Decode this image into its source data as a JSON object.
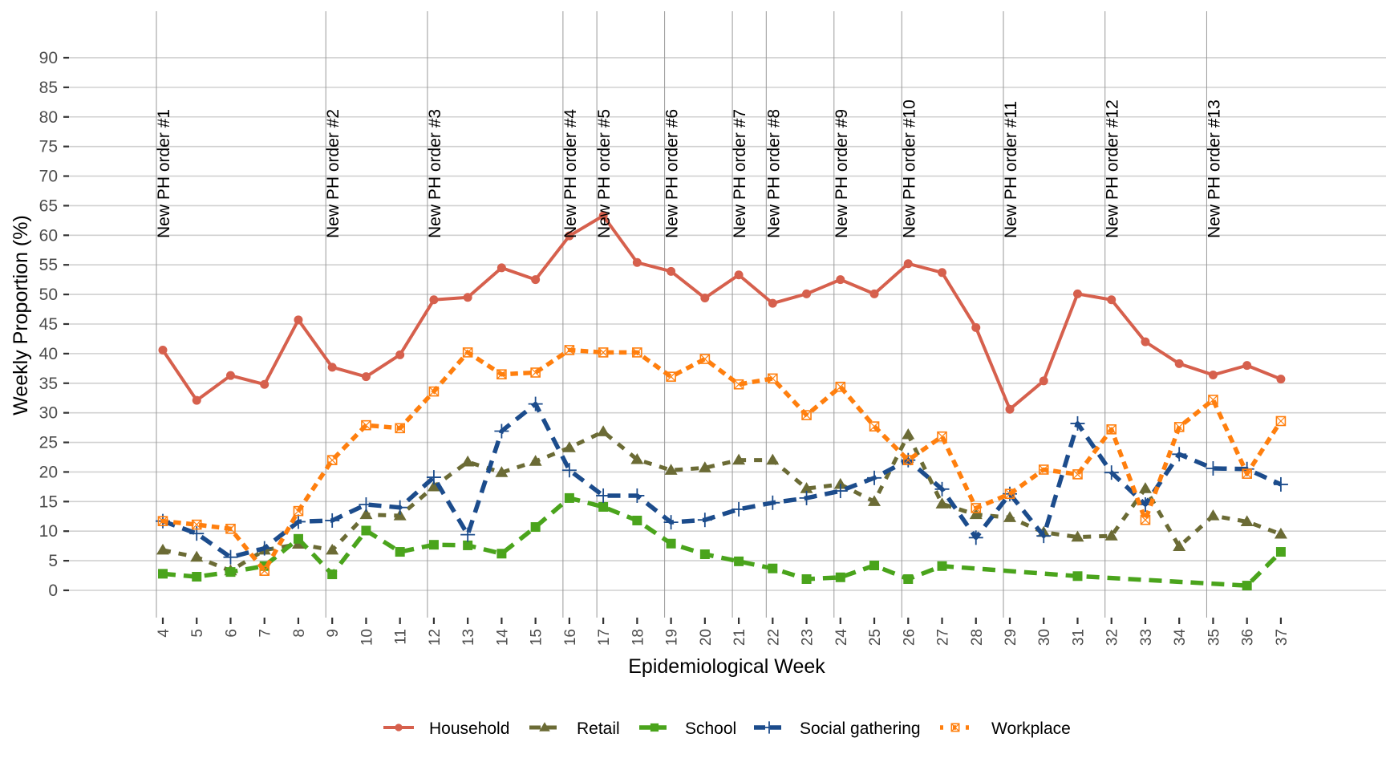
{
  "chart_data": {
    "type": "line",
    "title": "",
    "xlabel": "Epidemiological Week",
    "ylabel": "Weekly Proportion (%)",
    "ylim": [
      -4.5,
      93
    ],
    "yticks": [
      0,
      5,
      10,
      15,
      20,
      25,
      30,
      35,
      40,
      45,
      50,
      55,
      60,
      65,
      70,
      75,
      80,
      85,
      90
    ],
    "xlim": [
      1.3,
      38.5
    ],
    "x": [
      4,
      5,
      6,
      7,
      8,
      9,
      10,
      11,
      12,
      13,
      14,
      15,
      16,
      17,
      18,
      19,
      20,
      21,
      22,
      23,
      24,
      25,
      26,
      27,
      28,
      29,
      30,
      31,
      32,
      33,
      34,
      35,
      36,
      37
    ],
    "grid": "horizontal",
    "legend_position": "bottom",
    "series": [
      {
        "name": "Household",
        "color": "#d6604d",
        "line": "solid",
        "marker": "circle",
        "values": [
          40.6,
          32.1,
          36.3,
          34.8,
          45.7,
          37.7,
          36.1,
          39.8,
          49.1,
          49.5,
          54.5,
          52.5,
          59.9,
          63.3,
          55.4,
          53.9,
          49.4,
          53.3,
          48.5,
          50.1,
          52.5,
          50.1,
          55.2,
          53.7,
          44.4,
          30.6,
          35.4,
          50.1,
          49.1,
          42.0,
          38.3,
          36.4,
          38.0,
          35.7
        ]
      },
      {
        "name": "Retail",
        "color": "#6b6b35",
        "line": "dashed",
        "marker": "triangle",
        "values": [
          6.8,
          5.6,
          3.3,
          6.8,
          7.8,
          6.8,
          12.8,
          12.6,
          17.5,
          21.7,
          19.9,
          21.8,
          24.1,
          26.8,
          22.1,
          20.3,
          20.7,
          22.0,
          22.0,
          17.2,
          17.9,
          15.0,
          26.3,
          14.6,
          12.8,
          12.3,
          9.8,
          9.0,
          9.2,
          17.2,
          7.4,
          12.6,
          11.6,
          9.5
        ]
      },
      {
        "name": "School",
        "color": "#4aa41c",
        "line": "longdash",
        "marker": "square",
        "values": [
          2.8,
          2.3,
          3.1,
          4.1,
          8.7,
          2.7,
          10.1,
          6.5,
          7.7,
          7.6,
          6.2,
          10.7,
          15.6,
          14.1,
          11.8,
          7.9,
          6.1,
          4.9,
          3.7,
          1.9,
          2.2,
          4.2,
          1.9,
          4.1,
          null,
          null,
          null,
          2.4,
          null,
          null,
          null,
          null,
          0.8,
          6.5
        ]
      },
      {
        "name": "Social gathering",
        "color": "#1c4c8c",
        "line": "longdash",
        "marker": "plus",
        "values": [
          11.7,
          9.6,
          5.6,
          7.1,
          11.6,
          11.8,
          14.5,
          14.0,
          19.1,
          9.4,
          26.9,
          31.5,
          20.3,
          16.0,
          16.0,
          11.5,
          11.9,
          13.7,
          14.8,
          15.6,
          16.8,
          19.0,
          22.0,
          17.1,
          8.9,
          16.3,
          9.2,
          28.2,
          19.9,
          14.5,
          23.0,
          20.6,
          20.5,
          17.9
        ]
      },
      {
        "name": "Workplace",
        "color": "#ff7f0e",
        "line": "dotted",
        "marker": "square-x",
        "values": [
          11.7,
          11.1,
          10.4,
          3.3,
          13.4,
          22.0,
          27.9,
          27.4,
          33.6,
          40.2,
          36.5,
          36.8,
          40.6,
          40.2,
          40.2,
          36.1,
          39.1,
          34.8,
          35.8,
          29.6,
          34.4,
          27.7,
          22.0,
          26.0,
          13.9,
          16.3,
          20.4,
          19.6,
          27.2,
          11.9,
          27.6,
          32.2,
          19.7,
          28.6
        ]
      }
    ],
    "annotations": [
      {
        "x": 4,
        "label": "New PH order #1"
      },
      {
        "x": 9,
        "label": "New PH order #2"
      },
      {
        "x": 12,
        "label": "New PH order #3"
      },
      {
        "x": 16,
        "label": "New PH order #4"
      },
      {
        "x": 17,
        "label": "New PH order #5"
      },
      {
        "x": 19,
        "label": "New PH order #6"
      },
      {
        "x": 21,
        "label": "New PH order #7"
      },
      {
        "x": 22,
        "label": "New PH order #8"
      },
      {
        "x": 24,
        "label": "New PH order #9"
      },
      {
        "x": 26,
        "label": "New PH order #10"
      },
      {
        "x": 29,
        "label": "New PH order #11"
      },
      {
        "x": 32,
        "label": "New PH order #12"
      },
      {
        "x": 35,
        "label": "New PH order #13"
      }
    ]
  }
}
